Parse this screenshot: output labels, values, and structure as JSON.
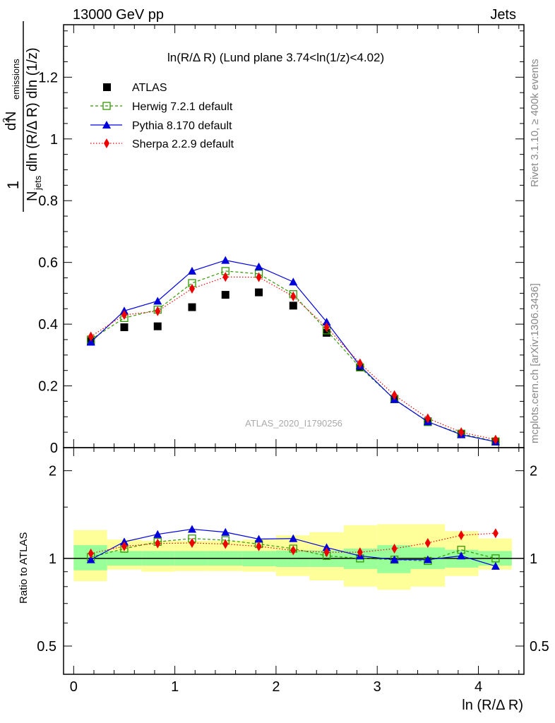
{
  "header": {
    "left": "13000 GeV pp",
    "right": "Jets"
  },
  "side_labels": {
    "rivet": "Rivet 3.1.10, ≥ 400k events",
    "mcplots": "mcplots.cern.ch [arXiv:1306.3436]"
  },
  "watermark": "ATLAS_2020_I1790256",
  "colors": {
    "atlas": "#000000",
    "herwig": "#339900",
    "pythia": "#0000dd",
    "sherpa": "#ee0000",
    "band_inner": "#99ff99",
    "band_outer": "#ffff99"
  },
  "chart_data": [
    {
      "type": "scatter",
      "panel": "main",
      "title": "ln(R/Δ R) (Lund plane 3.74<ln(1/z)<4.02)",
      "xlabel": "ln (R/Δ R)",
      "ylabel": "1/N_jets d²N_emissions / dln(R/Δ R) dln(1/z)",
      "ylabel_parts": {
        "one": "1",
        "d2": "d",
        "sup2": "2",
        "n": " N",
        "emissions": "emissions",
        "nsub": "N",
        "jets": "jets",
        "rest": "dln (R/Δ R) dln (1/z)"
      },
      "xlim": [
        -0.1,
        4.45
      ],
      "ylim": [
        0,
        1.37
      ],
      "yticks": [
        0,
        0.2,
        0.4,
        0.6,
        0.8,
        1,
        1.2
      ],
      "ytick_labels": [
        "0",
        "0.2",
        "0.4",
        "0.6",
        "0.8",
        "1",
        "1.2"
      ],
      "x": [
        0.17,
        0.5,
        0.83,
        1.17,
        1.5,
        1.83,
        2.17,
        2.5,
        2.83,
        3.17,
        3.5,
        3.83,
        4.17
      ],
      "legend_position": "top-left",
      "series": [
        {
          "name": "ATLAS",
          "key": "atlas",
          "values": [
            0.345,
            0.39,
            0.393,
            0.455,
            0.495,
            0.503,
            0.46,
            0.372,
            0.26,
            0.158,
            0.085,
            0.045,
            0.02
          ]
        },
        {
          "name": "Herwig 7.2.1 default",
          "key": "herwig",
          "values": [
            0.35,
            0.42,
            0.447,
            0.533,
            0.572,
            0.563,
            0.497,
            0.38,
            0.26,
            0.157,
            0.083,
            0.045,
            0.02
          ]
        },
        {
          "name": "Pythia 8.170 default",
          "key": "pythia",
          "values": [
            0.342,
            0.443,
            0.475,
            0.572,
            0.607,
            0.586,
            0.537,
            0.407,
            0.265,
            0.156,
            0.084,
            0.042,
            0.019
          ]
        },
        {
          "name": "Sherpa 2.2.9 default",
          "key": "sherpa",
          "values": [
            0.36,
            0.43,
            0.442,
            0.515,
            0.553,
            0.552,
            0.49,
            0.39,
            0.273,
            0.17,
            0.095,
            0.05,
            0.026
          ]
        }
      ]
    },
    {
      "type": "line",
      "panel": "ratio",
      "ylabel": "Ratio to ATLAS",
      "xlabel": "ln (R/Δ R)",
      "xlim": [
        -0.1,
        4.45
      ],
      "ylim": [
        0.4,
        2.4
      ],
      "log_y": true,
      "yticks": [
        0.5,
        1,
        2
      ],
      "ytick_labels": [
        "0.5",
        "1",
        "2"
      ],
      "xticks": [
        0,
        1,
        2,
        3,
        4
      ],
      "xtick_labels": [
        "0",
        "1",
        "2",
        "3",
        "4"
      ],
      "x": [
        0.17,
        0.5,
        0.83,
        1.17,
        1.5,
        1.83,
        2.17,
        2.5,
        2.83,
        3.17,
        3.5,
        3.83,
        4.17
      ],
      "bin_edges": [
        0,
        0.33,
        0.67,
        1.0,
        1.33,
        1.67,
        2.0,
        2.33,
        2.67,
        3.0,
        3.33,
        3.67,
        4.0,
        4.33
      ],
      "bands": {
        "inner_low": [
          0.91,
          0.945,
          0.945,
          0.945,
          0.945,
          0.94,
          0.935,
          0.935,
          0.92,
          0.89,
          0.92,
          0.93,
          0.945
        ],
        "inner_high": [
          1.11,
          1.06,
          1.06,
          1.06,
          1.06,
          1.06,
          1.065,
          1.065,
          1.08,
          1.11,
          1.09,
          1.07,
          1.06
        ],
        "outer_low": [
          0.835,
          0.915,
          0.9,
          0.905,
          0.905,
          0.9,
          0.87,
          0.84,
          0.8,
          0.78,
          0.8,
          0.87,
          0.915
        ],
        "outer_high": [
          1.25,
          1.16,
          1.15,
          1.15,
          1.15,
          1.16,
          1.2,
          1.23,
          1.3,
          1.31,
          1.31,
          1.24,
          1.17
        ]
      },
      "series": [
        {
          "name": "Herwig 7.2.1 default",
          "key": "herwig",
          "values": [
            1.01,
            1.08,
            1.14,
            1.17,
            1.155,
            1.12,
            1.08,
            1.02,
            1.0,
            0.99,
            0.98,
            1.07,
            1.0
          ]
        },
        {
          "name": "Pythia 8.170 default",
          "key": "pythia",
          "values": [
            0.99,
            1.14,
            1.21,
            1.26,
            1.23,
            1.165,
            1.17,
            1.09,
            1.02,
            0.99,
            0.99,
            1.02,
            0.94
          ]
        },
        {
          "name": "Sherpa 2.2.9 default",
          "key": "sherpa",
          "values": [
            1.04,
            1.1,
            1.125,
            1.13,
            1.12,
            1.1,
            1.065,
            1.05,
            1.05,
            1.08,
            1.13,
            1.2,
            1.22
          ]
        }
      ]
    }
  ]
}
